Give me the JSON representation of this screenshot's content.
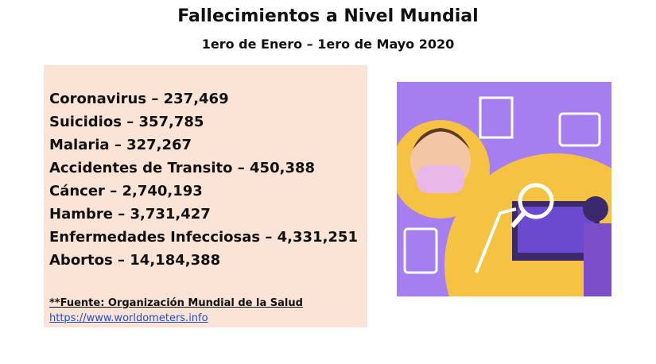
{
  "header": {
    "title": "Fallecimientos a Nivel Mundial",
    "subtitle": "1ero de Enero – 1ero de Mayo 2020"
  },
  "list": {
    "items": [
      "Coronavirus – 237,469",
      "Suicidios – 357,785",
      "Malaria – 327,267",
      "Accidentes de Transito – 450,388",
      "Cáncer – 2,740,193",
      "Hambre – 3,731,427",
      "Enfermedades Infecciosas – 4,331,251",
      "Abortos – 14,184,388"
    ]
  },
  "source": {
    "text": "**Fuente: Organización Mundial de la Salud",
    "link": "https://www.worldometers.info"
  }
}
